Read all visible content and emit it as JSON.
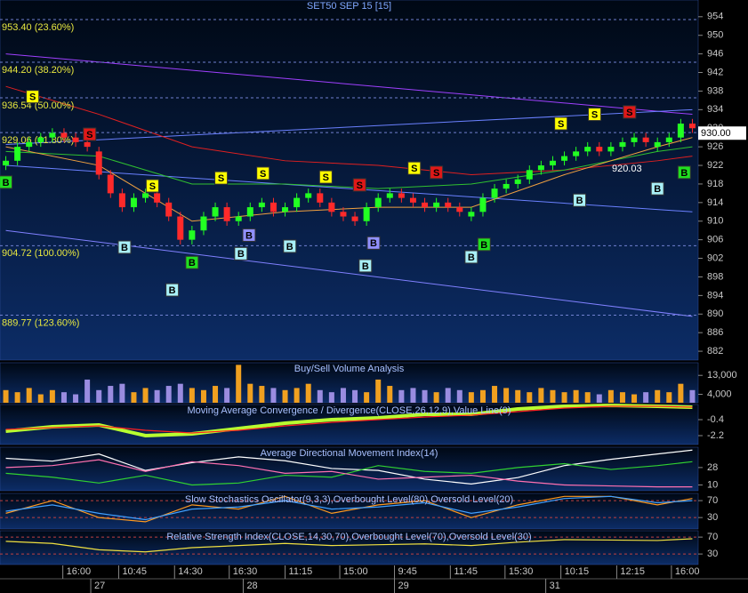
{
  "chart_data": [
    {
      "type": "candlestick",
      "title": "SET50 SEP 15  [15]",
      "xlim": [
        -0.5,
        59.5
      ],
      "ylim": [
        880.1,
        957.6
      ],
      "yticks": [
        954,
        950,
        946,
        942,
        938,
        934,
        930,
        926,
        922,
        918,
        914,
        910,
        906,
        902,
        898,
        894,
        890,
        886,
        882
      ],
      "grid": false,
      "up_color": "#22ff22",
      "down_color": "#ff2a2a",
      "open": [
        922,
        923,
        926,
        927,
        928,
        929,
        928,
        927,
        925,
        920,
        916,
        913,
        915,
        916,
        914,
        911,
        906,
        908,
        911,
        913,
        910,
        911,
        913,
        914,
        912,
        913,
        915,
        916,
        914,
        912,
        911,
        910,
        913,
        915,
        916,
        915,
        914,
        913,
        914,
        913,
        911,
        912,
        915,
        917,
        918,
        919,
        921,
        922,
        923,
        924,
        925,
        926,
        925,
        926,
        927,
        928,
        926,
        927,
        928,
        931
      ],
      "high": [
        924,
        927,
        928,
        929,
        930,
        930,
        929,
        928,
        926,
        921,
        917,
        916,
        917,
        917,
        915,
        912,
        909,
        912,
        914,
        914,
        912,
        914,
        915,
        915,
        914,
        916,
        917,
        917,
        915,
        913,
        912,
        914,
        916,
        917,
        917,
        916,
        915,
        915,
        915,
        914,
        913,
        916,
        918,
        919,
        920,
        922,
        923,
        924,
        925,
        926,
        927,
        927,
        927,
        928,
        929,
        929,
        928,
        929,
        932,
        932
      ],
      "low": [
        921,
        922,
        925,
        926,
        927,
        927,
        926,
        925,
        919,
        915,
        912,
        912,
        914,
        913,
        910,
        905,
        905,
        907,
        910,
        909,
        909,
        910,
        912,
        911,
        911,
        912,
        914,
        913,
        911,
        910,
        909,
        909,
        912,
        914,
        914,
        913,
        912,
        912,
        912,
        911,
        910,
        911,
        914,
        916,
        917,
        918,
        920,
        921,
        922,
        923,
        924,
        924,
        924,
        925,
        926,
        926,
        925,
        926,
        927,
        929
      ],
      "close": [
        923,
        926,
        927,
        928,
        929,
        928,
        927,
        926,
        920,
        916,
        913,
        915,
        916,
        914,
        911,
        906,
        908,
        911,
        913,
        910,
        911,
        913,
        914,
        912,
        913,
        915,
        916,
        914,
        912,
        911,
        910,
        913,
        915,
        916,
        915,
        914,
        913,
        914,
        913,
        912,
        912,
        915,
        917,
        918,
        919,
        921,
        922,
        923,
        924,
        925,
        926,
        925,
        926,
        927,
        928,
        927,
        927,
        928,
        931,
        930
      ],
      "fib_levels": [
        {
          "value": 953.4,
          "label": "953.40 (23.60%)"
        },
        {
          "value": 944.2,
          "label": "944.20 (38.20%)"
        },
        {
          "value": 936.54,
          "label": "936.54 (50.00%)"
        },
        {
          "value": 929.06,
          "label": "929.06 (61.80%)"
        },
        {
          "value": 904.72,
          "label": "904.72 (100.00%)"
        },
        {
          "value": 889.77,
          "label": "889.77 (123.60%)"
        }
      ],
      "last_price": {
        "value": 930,
        "label": "930.00"
      },
      "price_note": 920.03,
      "overlays": [
        {
          "color": "#a040ff",
          "x": [
            0,
            59
          ],
          "values": [
            946,
            933
          ]
        },
        {
          "color": "#8080ff",
          "x": [
            0,
            59
          ],
          "values": [
            908,
            889.5
          ]
        },
        {
          "color": "#6a80ff",
          "x": [
            0,
            59
          ],
          "values": [
            926.5,
            934
          ]
        },
        {
          "color": "#6a80ff",
          "x": [
            0,
            59
          ],
          "values": [
            922,
            912
          ]
        },
        {
          "color": "#e02020",
          "x": [
            0,
            8,
            16,
            24,
            32,
            40,
            48,
            56,
            59
          ],
          "values": [
            939,
            933,
            926,
            923,
            922,
            920,
            921,
            923,
            924
          ]
        },
        {
          "color": "#30c030",
          "x": [
            0,
            8,
            16,
            24,
            32,
            40,
            48,
            56,
            59
          ],
          "values": [
            925,
            924,
            918,
            918,
            917,
            918,
            921,
            925,
            926
          ]
        },
        {
          "color": "#f0a040",
          "x": [
            0,
            8,
            16,
            24,
            32,
            40,
            48,
            56,
            59
          ],
          "values": [
            926,
            922,
            910,
            912,
            913,
            913,
            920,
            926,
            928
          ]
        }
      ],
      "signals": [
        {
          "label": "S",
          "x": 2.3,
          "y": 936.8,
          "color": "#ffff00"
        },
        {
          "label": "B",
          "x": 0,
          "y": 918.4,
          "color": "#20e020"
        },
        {
          "label": "S",
          "x": 7.2,
          "y": 928.7,
          "color": "#e01818"
        },
        {
          "label": "B",
          "x": 10.2,
          "y": 904.4,
          "color": "#a8f0f8"
        },
        {
          "label": "S",
          "x": 12.6,
          "y": 917.6,
          "color": "#ffff00"
        },
        {
          "label": "B",
          "x": 14.3,
          "y": 895.2,
          "color": "#a8f0f8"
        },
        {
          "label": "B",
          "x": 16,
          "y": 901.1,
          "color": "#20e020"
        },
        {
          "label": "S",
          "x": 18.5,
          "y": 919.3,
          "color": "#ffff00"
        },
        {
          "label": "B",
          "x": 20.2,
          "y": 903,
          "color": "#a8f0f8"
        },
        {
          "label": "B",
          "x": 20.9,
          "y": 907,
          "color": "#9090ff"
        },
        {
          "label": "S",
          "x": 22.1,
          "y": 920.3,
          "color": "#ffff00"
        },
        {
          "label": "B",
          "x": 24.4,
          "y": 904.6,
          "color": "#a8f0f8"
        },
        {
          "label": "S",
          "x": 27.5,
          "y": 919.5,
          "color": "#ffff00"
        },
        {
          "label": "S",
          "x": 30.4,
          "y": 917.8,
          "color": "#e01818"
        },
        {
          "label": "B",
          "x": 30.9,
          "y": 900.4,
          "color": "#a8f0f8"
        },
        {
          "label": "B",
          "x": 31.6,
          "y": 905.3,
          "color": "#9090ff"
        },
        {
          "label": "S",
          "x": 35.1,
          "y": 921.4,
          "color": "#ffff00"
        },
        {
          "label": "S",
          "x": 37,
          "y": 920.5,
          "color": "#e01818"
        },
        {
          "label": "B",
          "x": 40,
          "y": 902.3,
          "color": "#a8f0f8"
        },
        {
          "label": "B",
          "x": 41.1,
          "y": 905,
          "color": "#20e020"
        },
        {
          "label": "S",
          "x": 47.7,
          "y": 931,
          "color": "#ffff00"
        },
        {
          "label": "B",
          "x": 49.3,
          "y": 914.5,
          "color": "#a8f0f8"
        },
        {
          "label": "S",
          "x": 50.6,
          "y": 933,
          "color": "#ffff00"
        },
        {
          "label": "S",
          "x": 53.6,
          "y": 933.5,
          "color": "#e01818"
        },
        {
          "label": "B",
          "x": 56,
          "y": 917,
          "color": "#a8f0f8"
        },
        {
          "label": "B",
          "x": 58.3,
          "y": 920.5,
          "color": "#20e020"
        }
      ],
      "xticks": [
        {
          "value": 4.9,
          "label": "16:00"
        },
        {
          "value": 9.7,
          "label": "10:45"
        },
        {
          "value": 14.5,
          "label": "14:30"
        },
        {
          "value": 19.2,
          "label": "16:30"
        },
        {
          "value": 24,
          "label": "11:15"
        },
        {
          "value": 28.7,
          "label": "15:00"
        },
        {
          "value": 33.4,
          "label": "9:45"
        },
        {
          "value": 38.2,
          "label": "11:45"
        },
        {
          "value": 42.9,
          "label": "15:30"
        },
        {
          "value": 47.7,
          "label": "10:15"
        },
        {
          "value": 52.5,
          "label": "12:15"
        },
        {
          "value": 57.2,
          "label": "16:00"
        }
      ],
      "dates": [
        {
          "value": 7.3,
          "label": "27"
        },
        {
          "value": 20.4,
          "label": "28"
        },
        {
          "value": 33.4,
          "label": "29"
        },
        {
          "value": 46.4,
          "label": "31"
        }
      ]
    },
    {
      "type": "bar",
      "title": "Buy/Sell Volume Analysis",
      "ylim": [
        0,
        19000
      ],
      "yticks": [
        {
          "value": 13000,
          "label": "13,000"
        },
        {
          "value": 4000,
          "label": "4,000"
        }
      ],
      "grid": false,
      "up_color": "#f0a020",
      "down_color": "#9a8ce0",
      "values": [
        6000,
        5000,
        7000,
        4000,
        6000,
        5000,
        4000,
        11000,
        6000,
        8000,
        9000,
        5000,
        7000,
        6000,
        8000,
        9000,
        7000,
        6000,
        8000,
        7000,
        18000,
        9000,
        8000,
        7000,
        6000,
        7000,
        9000,
        6000,
        5000,
        7000,
        6000,
        5000,
        11000,
        8000,
        6000,
        7000,
        6000,
        5000,
        7000,
        6000,
        5000,
        6000,
        8000,
        7000,
        6000,
        5000,
        7000,
        6000,
        5000,
        6000,
        5000,
        4000,
        6000,
        5000,
        4000,
        5000,
        6000,
        5000,
        9000,
        6000
      ]
    },
    {
      "type": "line",
      "title": "Moving Average Convergence / Divergence(CLOSE,26,12,9),Value Line(9)",
      "ylim": [
        -3.2,
        1.3
      ],
      "yticks": [
        -0.4,
        -2.2
      ],
      "grid": false,
      "x": [
        0,
        4,
        8,
        12,
        16,
        20,
        24,
        28,
        32,
        36,
        40,
        44,
        48,
        52,
        56,
        59
      ],
      "series": [
        {
          "color": "#b8ff30",
          "values": [
            -1.7,
            -1.2,
            -1.0,
            -2.2,
            -2.0,
            -1.4,
            -0.8,
            -0.4,
            -0.2,
            0.2,
            0.2,
            0.8,
            1.1,
            1.2,
            1.1,
            1.0
          ]
        },
        {
          "color": "#ff2020",
          "values": [
            -1.5,
            -1.3,
            -1.1,
            -1.6,
            -1.9,
            -1.6,
            -1.1,
            -0.7,
            -0.4,
            -0.1,
            0.1,
            0.5,
            0.9,
            1.1,
            1.1,
            1.0
          ]
        }
      ]
    },
    {
      "type": "line",
      "title": "Average Directional Movement Index(14)",
      "ylim": [
        4,
        49
      ],
      "yticks": [
        28,
        10
      ],
      "grid": false,
      "x": [
        0,
        4,
        8,
        12,
        16,
        20,
        24,
        28,
        32,
        36,
        40,
        44,
        48,
        52,
        56,
        59
      ],
      "series": [
        {
          "color": "#ffffff",
          "values": [
            37.5,
            34.6,
            42,
            25,
            33,
            39,
            35,
            27,
            25,
            16,
            11,
            17.6,
            30,
            36.5,
            42,
            46
          ]
        },
        {
          "color": "#30d030",
          "values": [
            22,
            18,
            12,
            20,
            10,
            12,
            20,
            18,
            30,
            24,
            22,
            28,
            32,
            26,
            30,
            34
          ]
        },
        {
          "color": "#ff70b0",
          "values": [
            28,
            30,
            36,
            24,
            34,
            30,
            22,
            24,
            16,
            18,
            20,
            14,
            10,
            9,
            8,
            8
          ]
        }
      ]
    },
    {
      "type": "line",
      "title": "Slow Stochastics Oscillator(9,3,3),Overbought Level(80),Oversold Level(20)",
      "ylim": [
        3,
        87
      ],
      "yticks": [
        70,
        30
      ],
      "grid": true,
      "x": [
        0,
        4,
        8,
        12,
        16,
        20,
        24,
        28,
        32,
        36,
        40,
        44,
        48,
        52,
        56,
        59
      ],
      "series": [
        {
          "color": "#ff9a20",
          "values": [
            40,
            70,
            30,
            20,
            60,
            50,
            80,
            40,
            60,
            70,
            30,
            60,
            80,
            80,
            60,
            75
          ]
        },
        {
          "color": "#40a0ff",
          "values": [
            45,
            60,
            40,
            25,
            50,
            55,
            70,
            50,
            55,
            65,
            40,
            55,
            75,
            80,
            65,
            70
          ]
        }
      ]
    },
    {
      "type": "line",
      "title": "Relative Strength Index(CLOSE,14,30,70),Overbought Level(70),Oversold Level(30)",
      "ylim": [
        5,
        85
      ],
      "yticks": [
        70,
        30
      ],
      "grid": true,
      "x": [
        0,
        4,
        8,
        12,
        16,
        20,
        24,
        28,
        32,
        36,
        40,
        44,
        48,
        52,
        56,
        59
      ],
      "series": [
        {
          "color": "#f0e040",
          "values": [
            60,
            55,
            40,
            35,
            45,
            50,
            55,
            50,
            52,
            54,
            50,
            58,
            64,
            63,
            62,
            66
          ]
        }
      ]
    }
  ]
}
